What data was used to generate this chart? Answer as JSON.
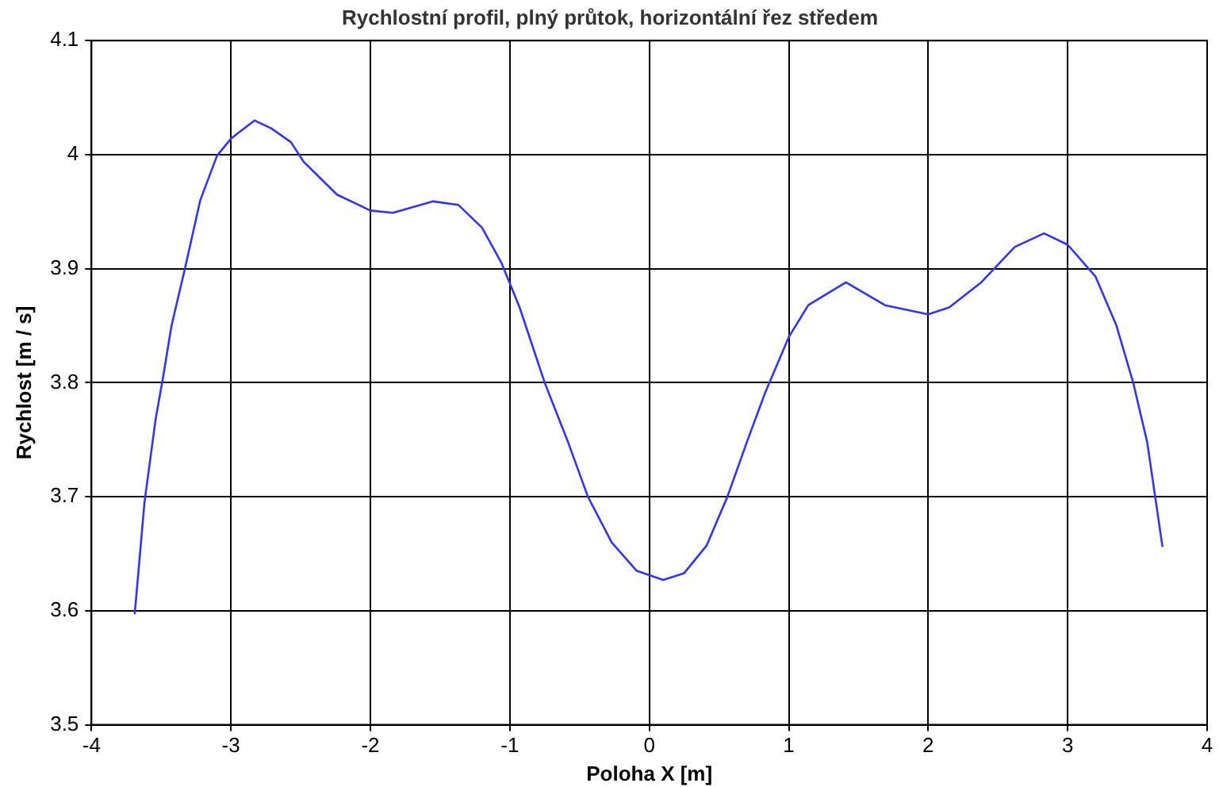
{
  "chart_data": {
    "type": "line",
    "title": "Rychlostní profil, plný průtok, horizontální řez středem",
    "xlabel": "Poloha X [m]",
    "ylabel": "Rychlost [m / s]",
    "x": [
      -3.69,
      -3.62,
      -3.54,
      -3.485,
      -3.426,
      -3.33,
      -3.22,
      -3.1,
      -3.0,
      -2.83,
      -2.71,
      -2.57,
      -2.48,
      -2.24,
      -2.0,
      -1.84,
      -1.55,
      -1.37,
      -1.2,
      -1.06,
      -0.93,
      -0.75,
      -0.58,
      -0.44,
      -0.27,
      -0.09,
      0.1,
      0.25,
      0.41,
      0.56,
      0.7,
      0.83,
      1.0,
      1.14,
      1.41,
      1.69,
      2.0,
      2.15,
      2.38,
      2.62,
      2.83,
      3.0,
      3.2,
      3.35,
      3.47,
      3.57,
      3.68
    ],
    "series": [
      {
        "color": "#3333ff",
        "values": [
          3.597,
          3.695,
          3.768,
          3.806,
          3.85,
          3.9,
          3.96,
          3.999,
          4.014,
          4.03,
          4.023,
          4.011,
          3.994,
          3.965,
          3.951,
          3.949,
          3.959,
          3.956,
          3.936,
          3.905,
          3.866,
          3.8,
          3.747,
          3.7,
          3.66,
          3.635,
          3.627,
          3.633,
          3.657,
          3.7,
          3.748,
          3.791,
          3.84,
          3.868,
          3.888,
          3.868,
          3.86,
          3.866,
          3.888,
          3.919,
          3.931,
          3.921,
          3.893,
          3.85,
          3.8,
          3.748,
          3.656
        ]
      }
    ],
    "xlim": [
      -4,
      4
    ],
    "xticks": [
      -4,
      -3,
      -2,
      -1,
      0,
      1,
      2,
      3,
      4
    ],
    "ylim": [
      3.5,
      4.1
    ],
    "yticks": [
      3.5,
      3.6,
      3.7,
      3.8,
      3.9,
      4,
      4.1
    ],
    "grid": true,
    "legend": false,
    "marker": "none",
    "line_style": "solid"
  }
}
